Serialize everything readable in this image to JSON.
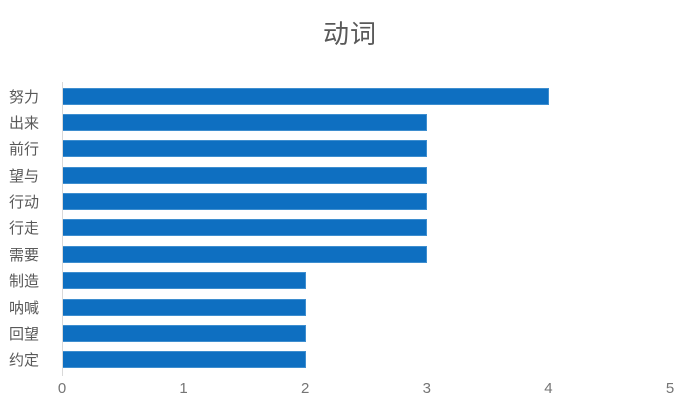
{
  "chart_style": {
    "colors": {
      "bar_fill": "#0E6FC1",
      "bar_border": "#3E8ECF",
      "axis_line": "#D9D9D9",
      "title": "#595959",
      "category_labels": "#595959",
      "tick_labels": "#757575"
    }
  },
  "chart_data": {
    "type": "bar",
    "orientation": "horizontal",
    "title": "动词",
    "categories": [
      "努力",
      "出来",
      "前行",
      "望与",
      "行动",
      "行走",
      "需要",
      "制造",
      "呐喊",
      "回望",
      "约定"
    ],
    "values": [
      4,
      3,
      3,
      3,
      3,
      3,
      3,
      2,
      2,
      2,
      2
    ],
    "xlabel": "",
    "ylabel": "",
    "xlim": [
      0,
      5
    ],
    "x_ticks": [
      0,
      1,
      2,
      3,
      4,
      5
    ],
    "grid": false,
    "legend": "none"
  }
}
